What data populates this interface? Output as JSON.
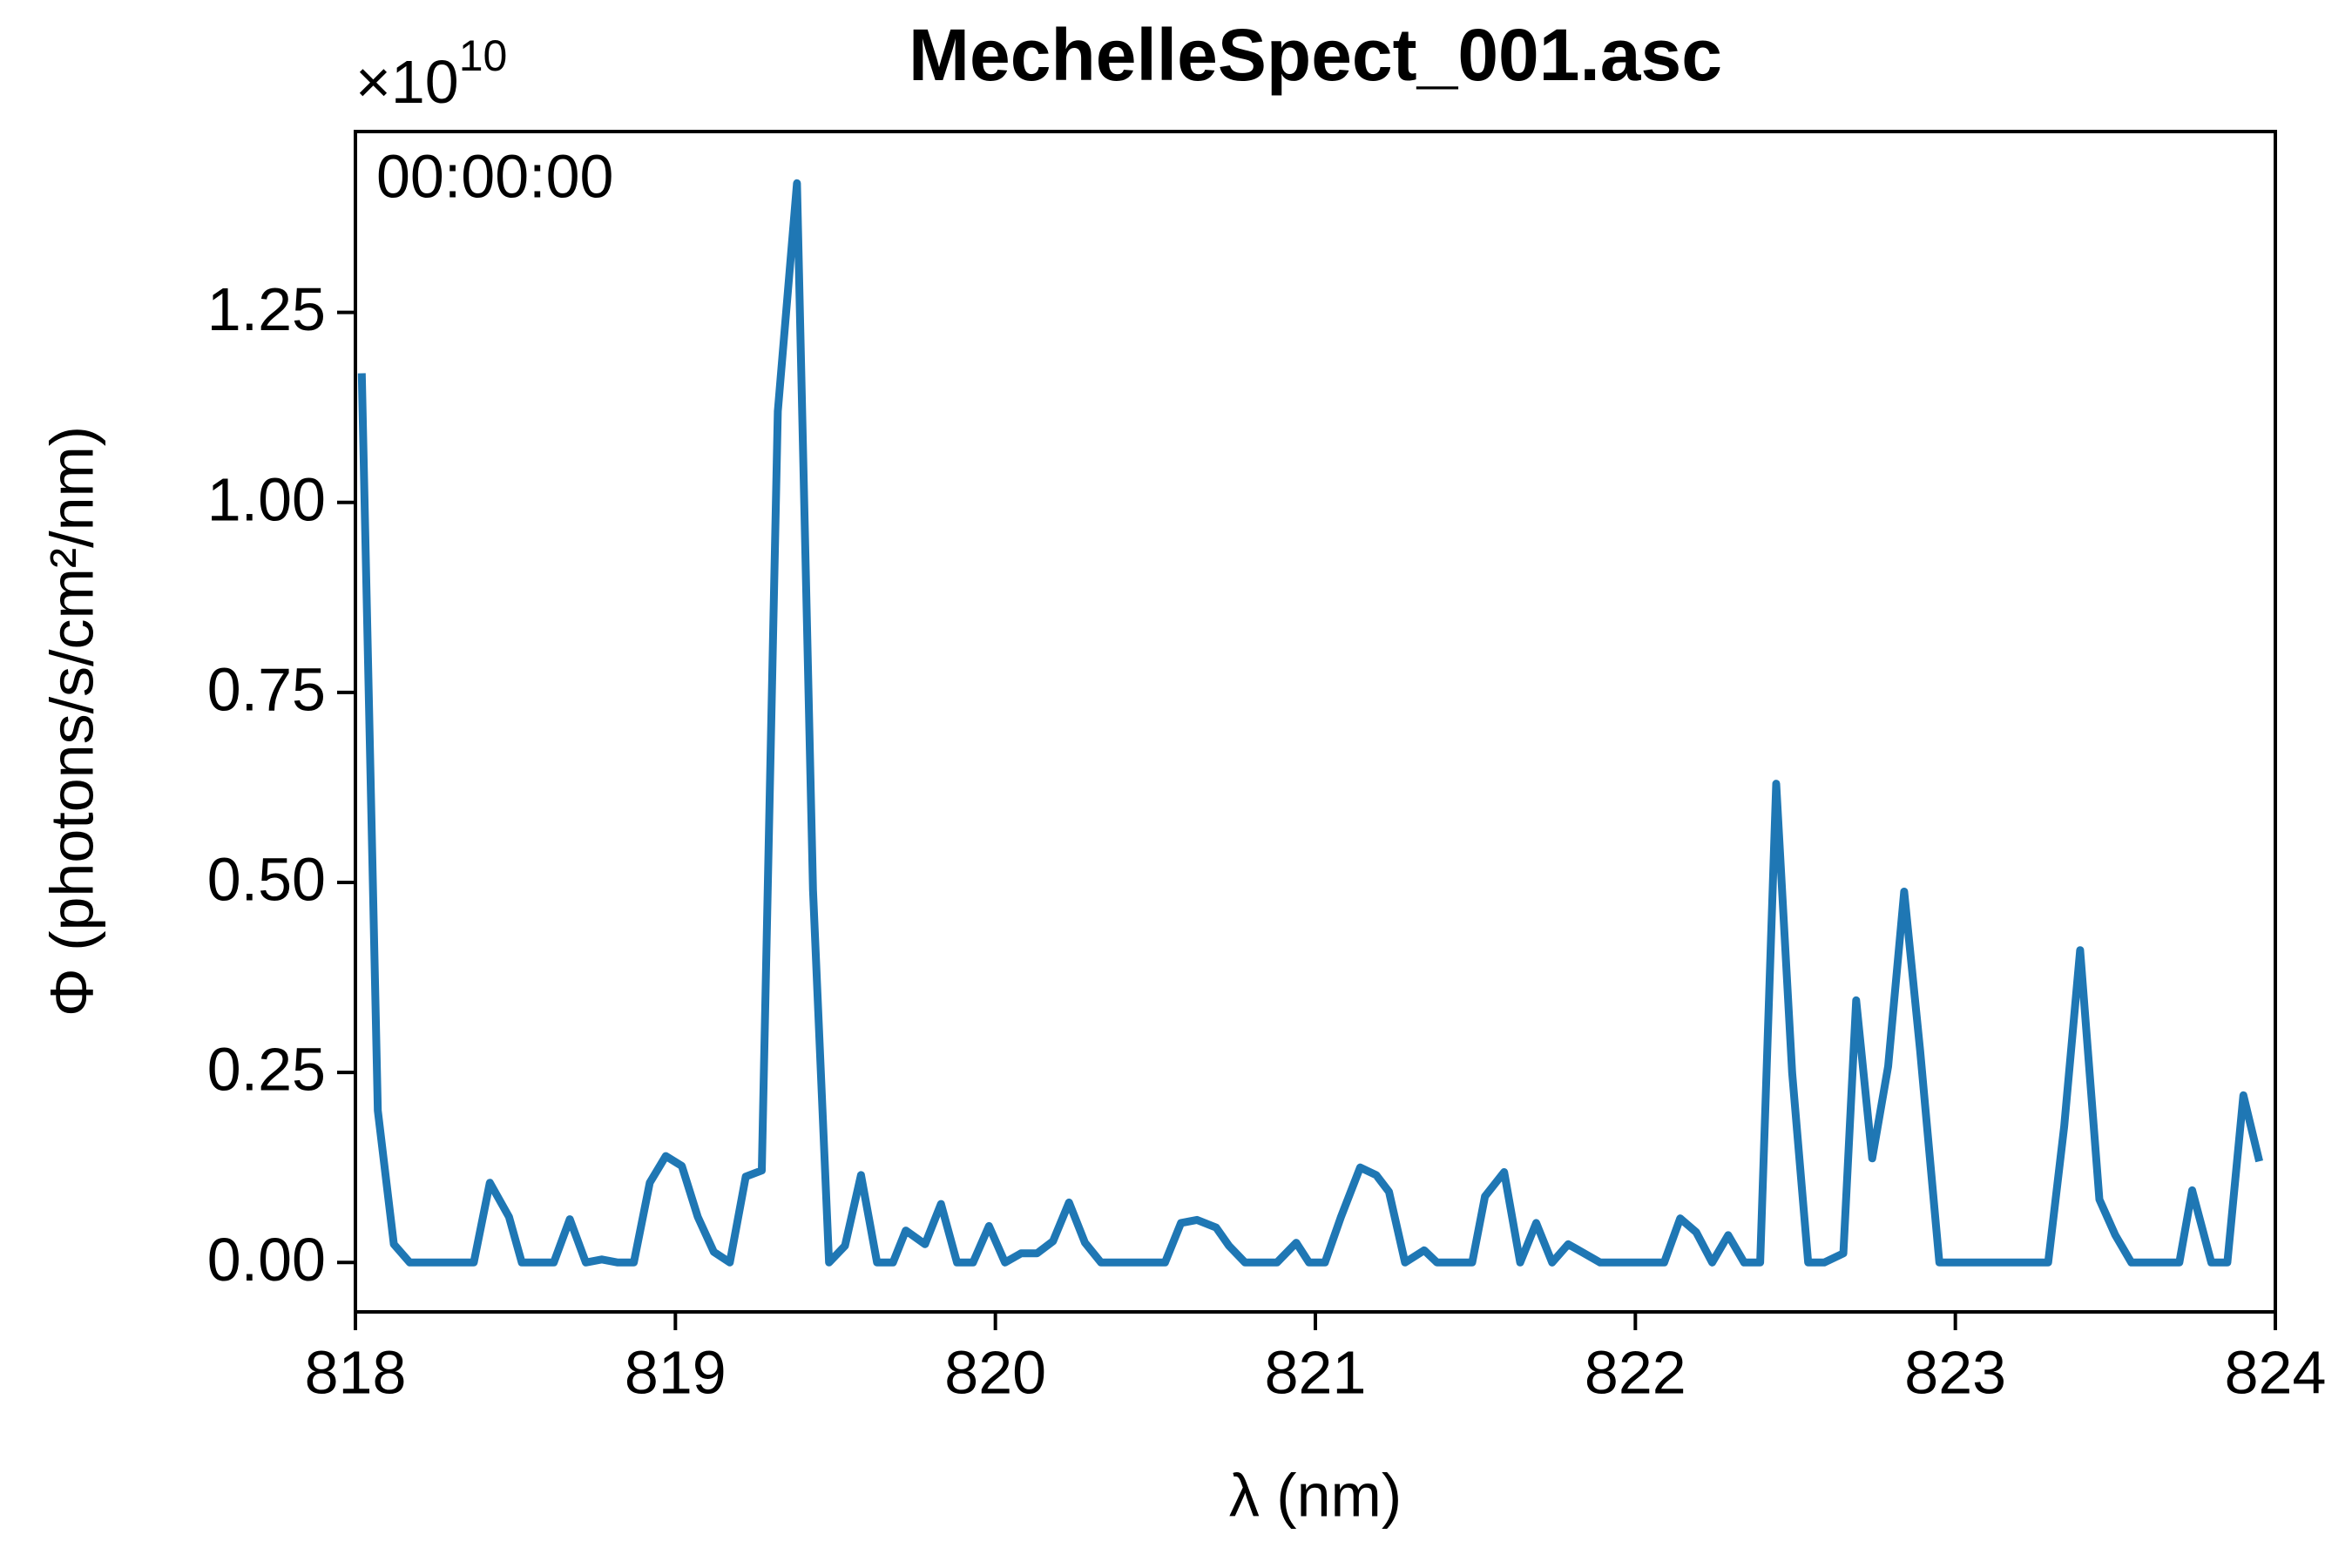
{
  "chart_data": {
    "type": "line",
    "title": "MechelleSpect_001.asc",
    "annotation": "00:00:00",
    "y_offset_text": "×10",
    "y_offset_exponent": "10",
    "xlabel": "λ (nm)",
    "ylabel": "Φ (photons/s/cm²/nm)",
    "color": "#1f77b4",
    "xlim": [
      818,
      824
    ],
    "xticks": [
      818,
      819,
      820,
      821,
      822,
      823,
      824
    ],
    "ylim": [
      -0.065,
      1.488
    ],
    "yticks": [
      {
        "value": 0,
        "label": "0.00"
      },
      0.25,
      {
        "value": 0.5,
        "label": "0.50"
      },
      0.75,
      {
        "value": 1,
        "label": "1.00"
      },
      1.25
    ],
    "x": [
      818.02,
      818.07,
      818.12,
      818.17,
      818.23,
      818.37,
      818.42,
      818.48,
      818.52,
      818.62,
      818.67,
      818.72,
      818.77,
      818.82,
      818.87,
      818.92,
      818.97,
      819.02,
      819.07,
      819.12,
      819.17,
      819.22,
      819.27,
      819.32,
      819.38,
      819.43,
      819.48,
      819.53,
      819.58,
      819.63,
      819.68,
      819.72,
      819.78,
      819.83,
      819.88,
      819.93,
      819.98,
      820.03,
      820.08,
      820.13,
      820.18,
      820.23,
      820.28,
      820.33,
      820.53,
      820.58,
      820.63,
      820.69,
      820.73,
      820.78,
      820.88,
      820.94,
      820.98,
      821.03,
      821.08,
      821.14,
      821.19,
      821.23,
      821.28,
      821.34,
      821.38,
      821.49,
      821.53,
      821.59,
      821.64,
      821.69,
      821.74,
      821.79,
      821.84,
      821.89,
      822.09,
      822.14,
      822.19,
      822.24,
      822.29,
      822.34,
      822.39,
      822.44,
      822.49,
      822.54,
      822.59,
      822.65,
      822.69,
      822.74,
      822.79,
      822.84,
      822.89,
      822.95,
      823.29,
      823.34,
      823.39,
      823.45,
      823.5,
      823.55,
      823.7,
      823.74,
      823.8,
      823.85,
      823.9,
      823.95
    ],
    "values": [
      1.17,
      0.2,
      0.024,
      0,
      0,
      0,
      0.105,
      0.06,
      0,
      0,
      0.057,
      0,
      0.004,
      0,
      0,
      0.105,
      0.14,
      0.127,
      0.06,
      0.014,
      0,
      0.113,
      0.121,
      1.12,
      1.42,
      0.49,
      0,
      0.022,
      0.115,
      0,
      0,
      0.042,
      0.024,
      0.077,
      0,
      0,
      0.048,
      0,
      0.012,
      0.012,
      0.028,
      0.079,
      0.026,
      0,
      0,
      0.052,
      0.056,
      0.046,
      0.022,
      0,
      0,
      0.026,
      0,
      0,
      0.06,
      0.125,
      0.115,
      0.093,
      0,
      0.016,
      0,
      0,
      0.087,
      0.119,
      0,
      0.052,
      0,
      0.024,
      0.012,
      0,
      0,
      0.058,
      0.04,
      0,
      0.036,
      0,
      0,
      0.63,
      0.25,
      0,
      0,
      0.012,
      0.345,
      0.137,
      0.258,
      0.488,
      0.278,
      0,
      0,
      0.179,
      0.411,
      0.083,
      0.036,
      0,
      0,
      0.095,
      0,
      0,
      0.22,
      0.133
    ]
  }
}
